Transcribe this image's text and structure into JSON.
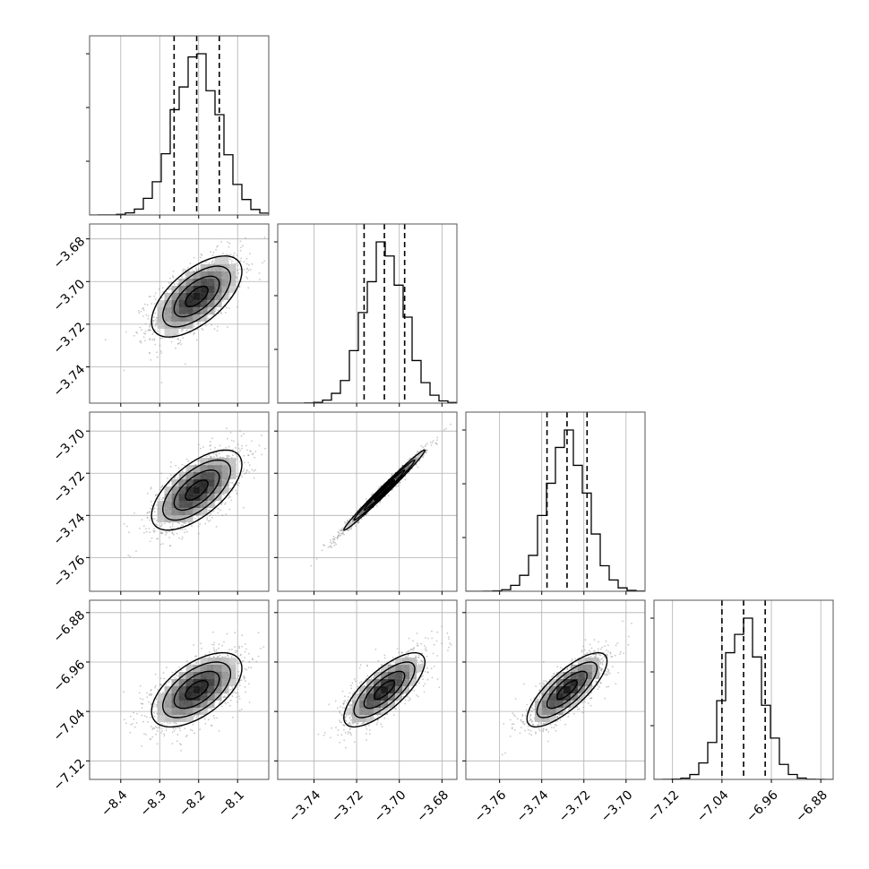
{
  "chart_data": {
    "type": "scatter",
    "title": "",
    "parameters": [
      "",
      "",
      "",
      ""
    ],
    "ranges": [
      [
        -8.48,
        -8.02
      ],
      [
        -3.757,
        -3.673
      ],
      [
        -3.776,
        -3.691
      ],
      [
        -7.15,
        -6.86
      ]
    ],
    "means": [
      -8.205,
      -3.707,
      -3.728,
      -7.005
    ],
    "sigmas": [
      0.058,
      0.0095,
      0.0095,
      0.03
    ],
    "correlations": [
      [
        1,
        0.62,
        0.64,
        0.58
      ],
      [
        0.62,
        1,
        0.99,
        0.75
      ],
      [
        0.64,
        0.99,
        1,
        0.78
      ],
      [
        0.58,
        0.75,
        0.78,
        1
      ]
    ],
    "quantiles": [
      [
        -8.263,
        -8.205,
        -8.147
      ],
      [
        -3.7165,
        -3.707,
        -3.6975
      ],
      [
        -3.7375,
        -3.728,
        -3.7185
      ],
      [
        -7.04,
        -7.005,
        -6.97
      ]
    ],
    "ticks": [
      [
        "-8.4",
        "-8.3",
        "-8.2",
        "-8.1"
      ],
      [
        "-3.74",
        "-3.72",
        "-3.70",
        "-3.68"
      ],
      [
        "-3.76",
        "-3.74",
        "-3.72",
        "-3.70"
      ],
      [
        "-7.12",
        "-7.04",
        "-6.96",
        "-6.88"
      ]
    ],
    "tick_values": [
      [
        -8.4,
        -8.3,
        -8.2,
        -8.1
      ],
      [
        -3.74,
        -3.72,
        -3.7,
        -3.68
      ],
      [
        -3.76,
        -3.74,
        -3.72,
        -3.7
      ],
      [
        -7.12,
        -7.04,
        -6.96,
        -6.88
      ]
    ],
    "bins": 20,
    "grid": true,
    "colors": {
      "points": "#888888",
      "contour": "#000000",
      "hist": "#000000",
      "grid": "#b0b0b0",
      "frame": "#555555"
    }
  }
}
